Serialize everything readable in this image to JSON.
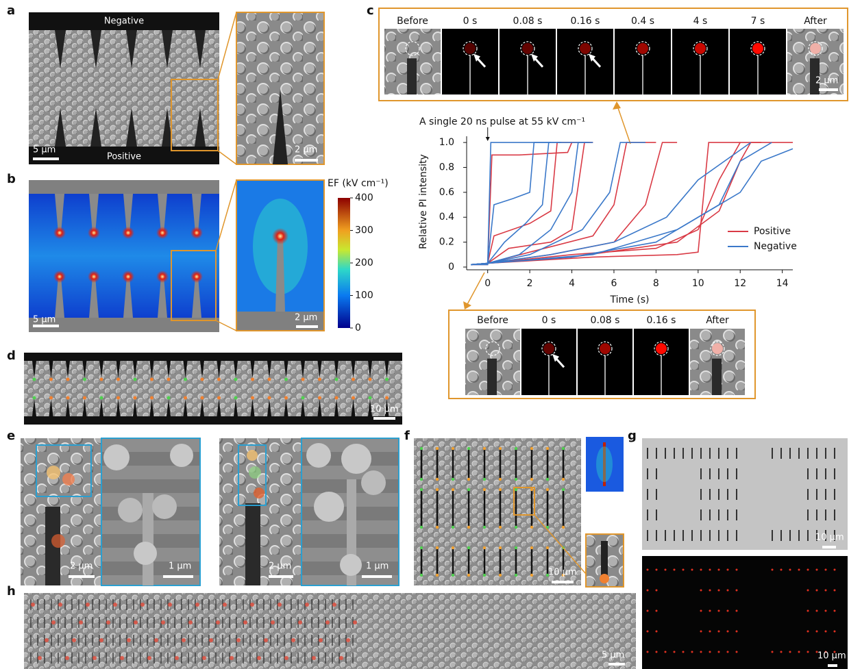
{
  "panels": {
    "a": {
      "label": "a",
      "top_text": "Negative",
      "bottom_text": "Positive",
      "scale_bars": [
        "5 μm",
        "2 μm"
      ]
    },
    "b": {
      "label": "b",
      "colorbar": {
        "title": "EF (kV cm⁻¹)",
        "lim": [
          0,
          400
        ],
        "ticks": [
          0,
          100,
          200,
          300,
          400
        ]
      },
      "scale_bars": [
        "5 μm",
        "2 μm"
      ]
    },
    "c": {
      "label": "c",
      "top_frames": [
        "Before",
        "0 s",
        "0.08 s",
        "0.16 s",
        "0.4 s",
        "4 s",
        "7 s",
        "After"
      ],
      "top_scale_bar": "2 μm",
      "bottom_frames": [
        "Before",
        "0 s",
        "0.08 s",
        "0.16 s",
        "After"
      ]
    },
    "d": {
      "label": "d",
      "scale_bar": "10 μm"
    },
    "e": {
      "label": "e",
      "scale_bars": [
        "2 μm",
        "1 μm",
        "2 μm",
        "1 μm"
      ]
    },
    "f": {
      "label": "f",
      "scale_bar": "10 μm"
    },
    "g": {
      "label": "g",
      "scale_bars": [
        "10 μm",
        "10 μm"
      ]
    },
    "h": {
      "label": "h",
      "scale_bar": "5 μm"
    }
  },
  "chart_data": {
    "type": "line",
    "annotation": "A single 20 ns pulse at 55 kV cm⁻¹",
    "x_label": "Time (s)",
    "y_label": "Relative PI intensity",
    "xlim": [
      -1,
      14.5
    ],
    "ylim": [
      0,
      1.05
    ],
    "xticks": [
      0,
      2,
      4,
      6,
      8,
      10,
      12,
      14
    ],
    "yticks": [
      0,
      0.2,
      0.4,
      0.6,
      0.8,
      {
        "value": 1,
        "label": "1.0"
      }
    ],
    "series": [
      {
        "name": "Positive",
        "color": "#d93a45",
        "curves": [
          {
            "x": [
              -0.8,
              0,
              0.2,
              1.5,
              3.8,
              4.0,
              4.9
            ],
            "values": [
              0.02,
              0.02,
              0.9,
              0.9,
              0.92,
              1.0,
              1.0
            ]
          },
          {
            "x": [
              -0.8,
              0,
              0.3,
              2.0,
              3.0,
              3.3,
              4.0
            ],
            "values": [
              0.02,
              0.03,
              0.25,
              0.35,
              0.45,
              1.0,
              1.0
            ]
          },
          {
            "x": [
              -0.8,
              0,
              1,
              3,
              4,
              4.6,
              5
            ],
            "values": [
              0.02,
              0.03,
              0.15,
              0.2,
              0.3,
              1.0,
              1.0
            ]
          },
          {
            "x": [
              -0.8,
              0,
              2,
              5,
              6,
              6.6,
              8
            ],
            "values": [
              0.02,
              0.03,
              0.12,
              0.25,
              0.5,
              1.0,
              1.0
            ]
          },
          {
            "x": [
              -0.8,
              0,
              3,
              6,
              7.5,
              8.3,
              9
            ],
            "values": [
              0.02,
              0.03,
              0.1,
              0.2,
              0.5,
              1.0,
              1.0
            ]
          },
          {
            "x": [
              -0.8,
              0,
              4,
              8,
              10,
              11,
              12,
              13
            ],
            "values": [
              0.02,
              0.03,
              0.1,
              0.15,
              0.3,
              0.7,
              1.0,
              1.0
            ]
          },
          {
            "x": [
              -0.8,
              0,
              5,
              9,
              10,
              10.5,
              12
            ],
            "values": [
              0.02,
              0.03,
              0.08,
              0.1,
              0.12,
              1.0,
              1.0
            ]
          },
          {
            "x": [
              -0.8,
              0,
              4,
              9,
              11,
              12,
              12.5,
              14.5
            ],
            "values": [
              0.02,
              0.03,
              0.08,
              0.2,
              0.45,
              0.85,
              1.0,
              1.0
            ]
          }
        ]
      },
      {
        "name": "Negative",
        "color": "#3a78c9",
        "curves": [
          {
            "x": [
              -0.8,
              0,
              0.15,
              1.5,
              3.5,
              4.8
            ],
            "values": [
              0.02,
              0.02,
              1.0,
              1.0,
              1.0,
              1.0
            ]
          },
          {
            "x": [
              -0.8,
              0,
              0.3,
              1.2,
              2.0,
              2.2,
              3.0
            ],
            "values": [
              0.02,
              0.03,
              0.5,
              0.55,
              0.6,
              1.0,
              1.0
            ]
          },
          {
            "x": [
              -0.8,
              0,
              0.8,
              1.8,
              2.6,
              2.9,
              3.5
            ],
            "values": [
              0.02,
              0.03,
              0.2,
              0.35,
              0.5,
              1.0,
              1.0
            ]
          },
          {
            "x": [
              -0.8,
              0,
              1.5,
              3,
              4,
              4.3,
              5
            ],
            "values": [
              0.02,
              0.03,
              0.1,
              0.3,
              0.6,
              1.0,
              1.0
            ]
          },
          {
            "x": [
              -0.8,
              0,
              2,
              4.5,
              5.8,
              6.3,
              7.5
            ],
            "values": [
              0.02,
              0.03,
              0.1,
              0.3,
              0.6,
              1.0,
              1.0
            ]
          },
          {
            "x": [
              -0.8,
              0,
              3,
              6,
              8.5,
              10,
              12.5
            ],
            "values": [
              0.02,
              0.03,
              0.1,
              0.2,
              0.4,
              0.7,
              1.0
            ]
          },
          {
            "x": [
              -0.8,
              0,
              4,
              8,
              11,
              12,
              13.5
            ],
            "values": [
              0.02,
              0.03,
              0.08,
              0.2,
              0.5,
              0.85,
              1.0
            ]
          },
          {
            "x": [
              -0.8,
              0,
              5,
              9,
              12,
              13,
              14.5
            ],
            "values": [
              0.02,
              0.03,
              0.1,
              0.3,
              0.6,
              0.85,
              0.95
            ]
          }
        ]
      }
    ]
  }
}
